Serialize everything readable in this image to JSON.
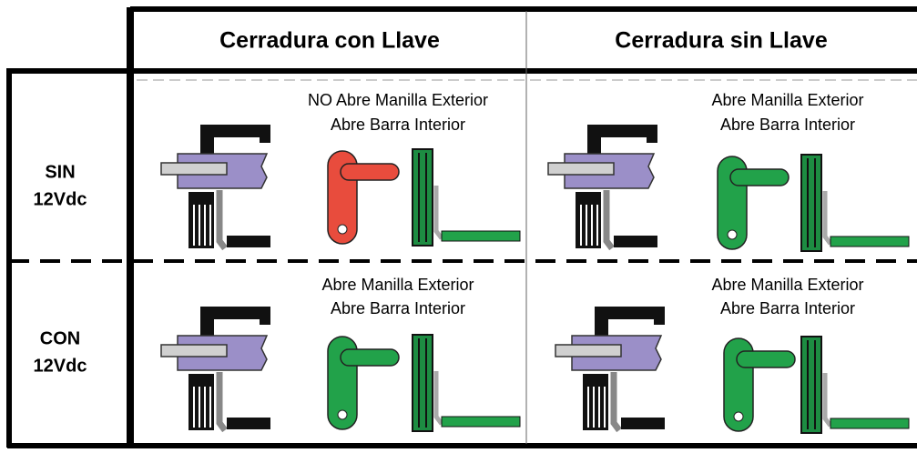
{
  "table": {
    "columns": [
      "Cerradura con Llave",
      "Cerradura sin Llave"
    ],
    "rows": [
      {
        "label": [
          "SIN",
          "12Vdc"
        ],
        "cells": [
          [
            "NO Abre Manilla Exterior",
            "Abre Barra Interior"
          ],
          [
            "Abre Manilla Exterior",
            "Abre Barra Interior"
          ]
        ]
      },
      {
        "label": [
          "CON",
          "12Vdc"
        ],
        "cells": [
          [
            "Abre Manilla Exterior",
            "Abre Barra Interior"
          ],
          [
            "Abre Manilla Exterior",
            "Abre Barra Interior"
          ]
        ]
      }
    ]
  }
}
